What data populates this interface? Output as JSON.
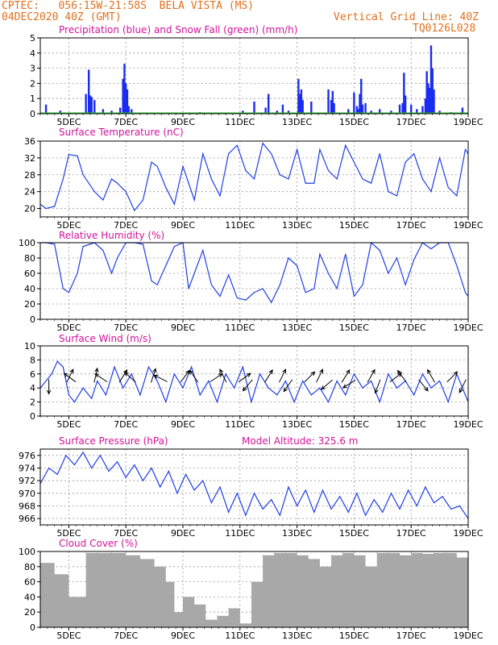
{
  "header": {
    "line1": "CPTEC:   056:15W-21:58S  BELA VISTA (MS)",
    "line2": "04DEC2020 40Z (GMT)",
    "grid_note": "Vertical Grid Line: 40Z",
    "code": "TQ0126L028"
  },
  "chart_data": [
    {
      "type": "bar",
      "title": "Precipitation (blue) and Snow Fall (green) (mm/h)",
      "x_range": [
        "04DEC",
        "19DEC"
      ],
      "x_ticks": [
        "5DEC",
        "7DEC",
        "9DEC",
        "11DEC",
        "13DEC",
        "15DEC",
        "17DEC",
        "19DEC"
      ],
      "ylim": [
        0,
        5
      ],
      "y_ticks": [
        0,
        1,
        2,
        3,
        4,
        5
      ],
      "colors": {
        "precip": "#1a2cf0",
        "snow": "#2bbf2b"
      },
      "series": [
        {
          "name": "precipitation",
          "x_days": [
            4.2,
            4.7,
            5.6,
            5.7,
            5.75,
            5.8,
            5.9,
            6.2,
            6.5,
            6.8,
            6.9,
            6.95,
            7.0,
            7.05,
            7.1,
            7.2,
            9.6,
            11.1,
            11.5,
            11.9,
            12.0,
            12.3,
            12.5,
            12.7,
            13.05,
            13.1,
            13.15,
            13.2,
            13.5,
            14.1,
            14.2,
            14.25,
            14.3,
            14.8,
            15.0,
            15.1,
            15.15,
            15.2,
            15.25,
            15.3,
            15.4,
            15.6,
            15.9,
            16.3,
            16.6,
            16.7,
            16.75,
            16.8,
            17.0,
            17.2,
            17.4,
            17.5,
            17.55,
            17.6,
            17.65,
            17.7,
            17.75,
            17.8,
            18.0,
            18.4,
            18.8
          ],
          "values": [
            0.6,
            0.2,
            1.3,
            2.9,
            1.2,
            1.1,
            0.9,
            0.3,
            0.2,
            0.4,
            2.3,
            3.3,
            2.0,
            1.6,
            0.5,
            0.3,
            0.1,
            0.2,
            0.8,
            0.4,
            1.3,
            0.2,
            0.6,
            0.2,
            2.3,
            1.3,
            1.6,
            0.9,
            0.8,
            1.6,
            0.9,
            1.5,
            0.7,
            0.3,
            1.4,
            0.5,
            0.3,
            1.3,
            2.3,
            0.6,
            0.7,
            0.2,
            0.3,
            0.2,
            0.6,
            0.7,
            2.7,
            1.2,
            0.6,
            0.3,
            0.5,
            1.0,
            2.8,
            2.0,
            1.7,
            4.5,
            3.0,
            1.6,
            0.2,
            0.1,
            0.4
          ]
        },
        {
          "name": "snow",
          "x_days": [
            4.0,
            19.0
          ],
          "values": [
            0,
            0
          ]
        }
      ]
    },
    {
      "type": "line",
      "title": "Surface Temperature (nC)",
      "x_ticks": [
        "5DEC",
        "7DEC",
        "9DEC",
        "11DEC",
        "13DEC",
        "15DEC",
        "17DEC",
        "19DEC"
      ],
      "ylim": [
        18,
        36
      ],
      "y_ticks": [
        20,
        24,
        28,
        32,
        36
      ],
      "color": "#1f3fe6",
      "series": [
        {
          "x_days": [
            4.0,
            4.2,
            4.5,
            4.8,
            5.0,
            5.3,
            5.5,
            5.9,
            6.2,
            6.5,
            6.7,
            7.0,
            7.3,
            7.6,
            7.9,
            8.1,
            8.4,
            8.7,
            9.0,
            9.2,
            9.4,
            9.7,
            10.0,
            10.3,
            10.6,
            10.9,
            11.2,
            11.5,
            11.8,
            12.1,
            12.4,
            12.7,
            13.0,
            13.3,
            13.6,
            13.8,
            14.1,
            14.4,
            14.7,
            15.0,
            15.3,
            15.6,
            15.9,
            16.2,
            16.5,
            16.8,
            17.1,
            17.4,
            17.7,
            18.0,
            18.3,
            18.6,
            18.9,
            19.0
          ],
          "values": [
            21,
            20,
            20.5,
            27,
            32.8,
            32.5,
            28,
            24,
            22,
            27,
            26,
            24,
            19.5,
            22,
            31,
            30,
            25,
            21,
            30,
            26,
            22,
            33,
            27,
            23,
            33,
            35,
            29,
            27,
            35.5,
            33,
            28,
            27,
            34,
            26,
            26,
            34,
            29,
            27,
            35,
            31,
            27,
            26,
            33,
            24,
            23,
            31,
            33,
            27,
            24,
            32,
            25,
            23,
            34,
            33
          ]
        }
      ]
    },
    {
      "type": "line",
      "title": "Relative Humidity (%)",
      "x_ticks": [
        "5DEC",
        "7DEC",
        "9DEC",
        "11DEC",
        "13DEC",
        "15DEC",
        "17DEC",
        "19DEC"
      ],
      "ylim": [
        0,
        100
      ],
      "y_ticks": [
        0,
        20,
        40,
        60,
        80,
        100
      ],
      "color": "#1f3fe6",
      "series": [
        {
          "x_days": [
            4.0,
            4.2,
            4.5,
            4.8,
            5.0,
            5.3,
            5.5,
            5.9,
            6.2,
            6.5,
            6.7,
            7.0,
            7.3,
            7.6,
            7.9,
            8.1,
            8.4,
            8.7,
            9.0,
            9.2,
            9.4,
            9.7,
            10.0,
            10.3,
            10.6,
            10.9,
            11.2,
            11.5,
            11.8,
            12.1,
            12.4,
            12.7,
            13.0,
            13.3,
            13.6,
            13.8,
            14.1,
            14.4,
            14.7,
            15.0,
            15.3,
            15.6,
            15.9,
            16.2,
            16.5,
            16.8,
            17.1,
            17.4,
            17.7,
            18.0,
            18.3,
            18.6,
            18.9,
            19.0
          ],
          "values": [
            100,
            100,
            98,
            40,
            35,
            60,
            95,
            100,
            90,
            60,
            80,
            100,
            100,
            98,
            50,
            45,
            70,
            95,
            100,
            40,
            60,
            90,
            45,
            30,
            58,
            28,
            25,
            35,
            40,
            22,
            45,
            80,
            70,
            35,
            40,
            85,
            60,
            40,
            85,
            30,
            45,
            100,
            90,
            60,
            80,
            45,
            78,
            100,
            92,
            100,
            100,
            70,
            35,
            30
          ]
        }
      ]
    },
    {
      "type": "line",
      "title": "Surface Wind (m/s)",
      "x_ticks": [
        "5DEC",
        "7DEC",
        "9DEC",
        "11DEC",
        "13DEC",
        "15DEC",
        "17DEC",
        "19DEC"
      ],
      "ylim": [
        0,
        10
      ],
      "y_ticks": [
        0,
        2,
        4,
        6,
        8,
        10
      ],
      "color": "#1f3fe6",
      "series": [
        {
          "x_days": [
            4.0,
            4.2,
            4.4,
            4.6,
            4.8,
            5.0,
            5.2,
            5.5,
            5.8,
            6.0,
            6.3,
            6.6,
            6.9,
            7.2,
            7.5,
            7.8,
            8.1,
            8.4,
            8.7,
            9.0,
            9.3,
            9.6,
            9.9,
            10.2,
            10.5,
            10.8,
            11.1,
            11.4,
            11.7,
            12.0,
            12.3,
            12.6,
            12.9,
            13.2,
            13.5,
            13.8,
            14.1,
            14.4,
            14.7,
            15.0,
            15.3,
            15.6,
            15.9,
            16.2,
            16.5,
            16.8,
            17.1,
            17.4,
            17.7,
            18.0,
            18.3,
            18.6,
            18.9,
            19.0
          ],
          "values": [
            4,
            5,
            6,
            7.8,
            7,
            3,
            2,
            4,
            2.5,
            5,
            3,
            7,
            4,
            6,
            3,
            7,
            5,
            2,
            6,
            4,
            7,
            3,
            5,
            2,
            6,
            4,
            7,
            2,
            6,
            4,
            3,
            5,
            2,
            5,
            3,
            4,
            2,
            5,
            3,
            6,
            4,
            5,
            2,
            6,
            4,
            5,
            3,
            6,
            4,
            5,
            2,
            6,
            3,
            2
          ]
        }
      ],
      "vectors": {
        "x_days": [
          4.3,
          4.95,
          5.2,
          5.9,
          6.3,
          6.8,
          7.3,
          7.9,
          8.4,
          8.95,
          9.5,
          10.0,
          10.5,
          11.0,
          11.4,
          11.9,
          12.4,
          12.8,
          13.3,
          13.7,
          14.2,
          14.6,
          15.0,
          15.5,
          15.9,
          16.3,
          16.8,
          17.3,
          17.8,
          18.3,
          18.9
        ],
        "u": [
          0,
          0.4,
          -0.7,
          0.2,
          -0.9,
          0.5,
          -0.8,
          0.3,
          -1,
          0.6,
          -0.5,
          0.9,
          -0.4,
          0.7,
          -0.6,
          0.5,
          0.3,
          -0.5,
          0.6,
          0.4,
          -0.7,
          0.5,
          -0.8,
          0.4,
          -0.3,
          0.8,
          -0.6,
          0.5,
          -0.4,
          0.6,
          -0.4
        ],
        "v": [
          -1,
          0.8,
          0.5,
          0.9,
          0.6,
          0.8,
          0.7,
          0.9,
          0.5,
          0.8,
          0.7,
          0.6,
          0.8,
          0.5,
          -0.7,
          0.8,
          0.6,
          -0.7,
          0.6,
          0.8,
          -0.6,
          0.8,
          -0.5,
          0.7,
          -0.8,
          0.6,
          0.8,
          -0.6,
          0.7,
          0.6,
          -0.8
        ]
      }
    },
    {
      "type": "line",
      "title": "Surface Pressure (hPa)",
      "annotation": "Model Altitude: 325.6 m",
      "x_ticks": [
        "5DEC",
        "7DEC",
        "9DEC",
        "11DEC",
        "13DEC",
        "15DEC",
        "17DEC",
        "19DEC"
      ],
      "ylim": [
        965,
        977
      ],
      "y_ticks": [
        966,
        968,
        970,
        972,
        974,
        976
      ],
      "color": "#1f3fe6",
      "series": [
        {
          "x_days": [
            4.0,
            4.3,
            4.6,
            4.9,
            5.2,
            5.5,
            5.8,
            6.1,
            6.4,
            6.7,
            7.0,
            7.3,
            7.6,
            7.9,
            8.2,
            8.5,
            8.8,
            9.1,
            9.4,
            9.7,
            10.0,
            10.3,
            10.6,
            10.9,
            11.2,
            11.5,
            11.8,
            12.1,
            12.4,
            12.7,
            13.0,
            13.3,
            13.6,
            13.9,
            14.2,
            14.5,
            14.8,
            15.1,
            15.4,
            15.7,
            16.0,
            16.3,
            16.6,
            16.9,
            17.2,
            17.5,
            17.8,
            18.1,
            18.4,
            18.7,
            19.0
          ],
          "values": [
            971.5,
            974,
            973,
            976,
            974.5,
            976.5,
            974,
            976,
            973.5,
            975,
            972.5,
            974.5,
            972,
            974,
            971,
            973.5,
            970,
            973,
            970.5,
            972,
            968.5,
            971,
            967,
            970,
            966.5,
            970,
            967.5,
            969,
            966.5,
            971,
            968,
            970.5,
            967,
            970.5,
            967.5,
            969.5,
            967,
            970,
            966.5,
            969,
            967,
            970,
            967.5,
            970.5,
            968,
            971,
            968.5,
            969.5,
            967.5,
            968,
            966
          ]
        }
      ]
    },
    {
      "type": "bar",
      "title": "Cloud Cover (%)",
      "x_ticks": [
        "5DEC",
        "7DEC",
        "9DEC",
        "11DEC",
        "13DEC",
        "15DEC",
        "17DEC",
        "19DEC"
      ],
      "ylim": [
        0,
        100
      ],
      "y_ticks": [
        0,
        20,
        40,
        60,
        80,
        100
      ],
      "color": "#a8a8a8",
      "series": [
        {
          "x_days": [
            4.0,
            4.5,
            5.0,
            5.6,
            6.0,
            6.5,
            7.0,
            7.5,
            8.0,
            8.4,
            8.7,
            9.0,
            9.4,
            9.8,
            10.2,
            10.6,
            11.0,
            11.4,
            11.8,
            12.2,
            12.6,
            13.0,
            13.4,
            13.8,
            14.2,
            14.6,
            15.0,
            15.4,
            15.8,
            16.2,
            16.6,
            17.0,
            17.4,
            17.8,
            18.2,
            18.6,
            19.0
          ],
          "values": [
            85,
            70,
            40,
            98,
            98,
            98,
            95,
            90,
            80,
            60,
            20,
            40,
            30,
            10,
            15,
            25,
            5,
            60,
            95,
            98,
            98,
            95,
            90,
            80,
            95,
            98,
            95,
            80,
            98,
            98,
            95,
            98,
            97,
            98,
            98,
            92,
            88
          ]
        }
      ]
    }
  ]
}
